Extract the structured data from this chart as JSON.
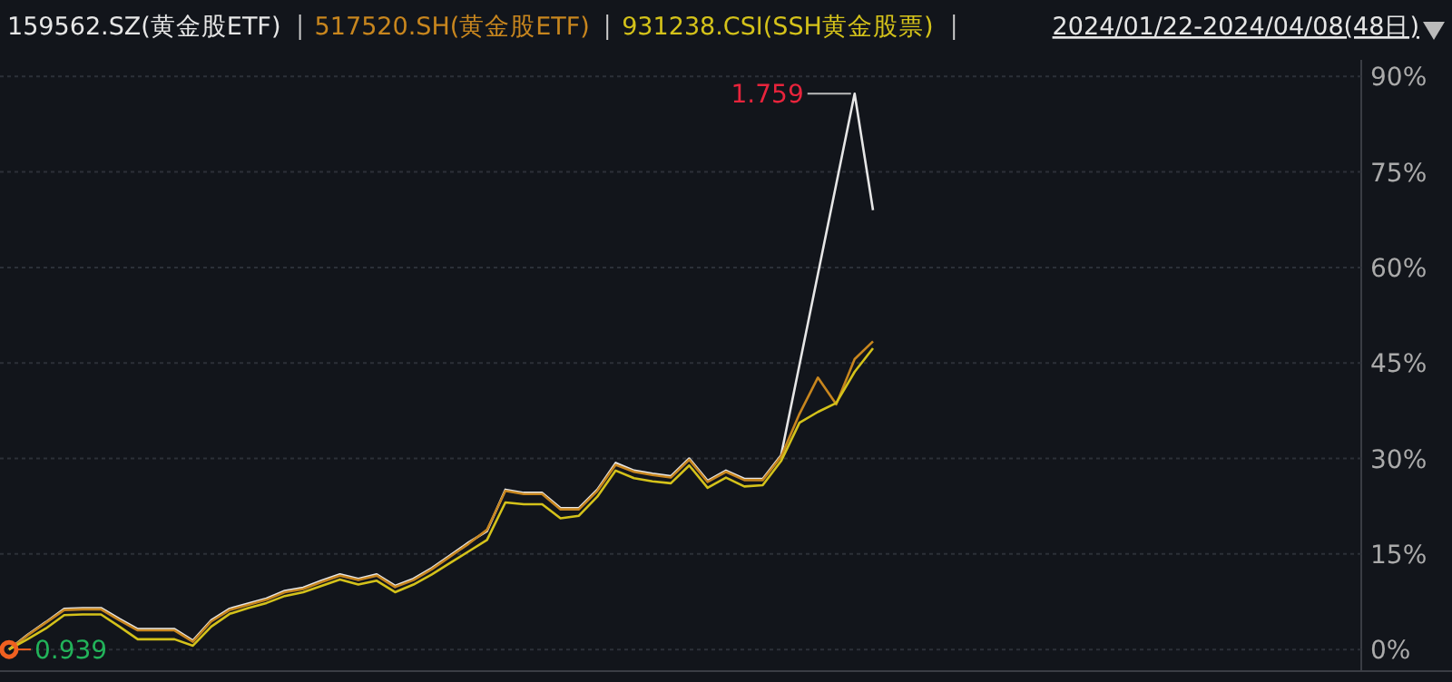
{
  "chart_data": {
    "type": "line",
    "subtitle": "2024/01/22-2024/04/08(48日)",
    "legend": "top left",
    "grid": "y",
    "line_style": "solid",
    "tick_labels": "y",
    "categories": [
      null,
      null,
      null,
      null,
      null,
      null,
      null,
      null,
      null,
      null,
      null,
      null,
      null,
      null,
      null,
      null,
      null,
      null,
      null,
      null,
      null,
      null,
      null,
      null,
      null,
      null,
      null,
      null,
      null,
      null,
      null,
      null,
      null,
      null,
      null,
      null,
      null,
      null,
      null,
      null,
      null,
      null,
      null,
      null,
      null,
      null,
      null,
      null
    ],
    "ylim": [
      -3.4,
      92.6
    ],
    "yticks": [
      {
        "value": 0,
        "label": "0%"
      },
      {
        "value": 15,
        "label": "15%"
      },
      {
        "value": 30,
        "label": "30%"
      },
      {
        "value": 45,
        "label": "45%"
      },
      {
        "value": 60,
        "label": "60%"
      },
      {
        "value": 75,
        "label": "75%"
      },
      {
        "value": 90,
        "label": "90%"
      }
    ],
    "series": [
      {
        "name": "159562.SZ(黄金股ETF)",
        "color": "#e6e6e6",
        "values": [
          0,
          2.3,
          4.3,
          6.4,
          6.5,
          6.5,
          4.8,
          3.2,
          3.2,
          3.2,
          1.4,
          4.6,
          6.4,
          7.2,
          8.0,
          9.2,
          9.7,
          10.8,
          11.8,
          11.1,
          11.8,
          10.0,
          11.1,
          12.8,
          14.8,
          16.8,
          18.6,
          25.1,
          24.6,
          24.6,
          22.2,
          22.2,
          25.1,
          29.3,
          28.1,
          27.6,
          27.2,
          30.0,
          26.5,
          28.1,
          26.8,
          26.8,
          30.5,
          44.7,
          58.9,
          73.1,
          87.3,
          69.0
        ]
      },
      {
        "name": "517520.SH(黄金股ETF)",
        "color": "#c8861e",
        "values": [
          0,
          2.2,
          4.2,
          6.2,
          6.3,
          6.3,
          4.6,
          3.0,
          3.0,
          3.0,
          1.2,
          4.4,
          6.2,
          7.0,
          7.8,
          9.0,
          9.5,
          10.6,
          11.6,
          10.9,
          11.6,
          9.8,
          10.9,
          12.6,
          14.6,
          16.6,
          18.8,
          24.9,
          24.4,
          24.4,
          22.0,
          22.0,
          24.9,
          29.0,
          27.9,
          27.4,
          27.0,
          29.8,
          26.3,
          27.9,
          26.6,
          26.6,
          30.3,
          37.0,
          42.7,
          38.5,
          45.6,
          48.4
        ]
      },
      {
        "name": "931238.CSI(SSH黄金股票)",
        "color": "#d4c21a",
        "values": [
          0,
          1.6,
          3.3,
          5.4,
          5.5,
          5.5,
          3.6,
          1.6,
          1.6,
          1.6,
          0.6,
          3.6,
          5.6,
          6.5,
          7.3,
          8.4,
          9.0,
          10.0,
          11.0,
          10.2,
          10.8,
          9.0,
          10.2,
          11.8,
          13.6,
          15.4,
          17.2,
          23.1,
          22.8,
          22.8,
          20.6,
          21.0,
          24.0,
          28.1,
          26.9,
          26.4,
          26.1,
          28.9,
          25.4,
          27.0,
          25.6,
          25.8,
          29.6,
          35.6,
          37.3,
          38.7,
          43.6,
          47.3
        ]
      }
    ],
    "annotations": [
      "1.759",
      "0.939"
    ]
  }
}
